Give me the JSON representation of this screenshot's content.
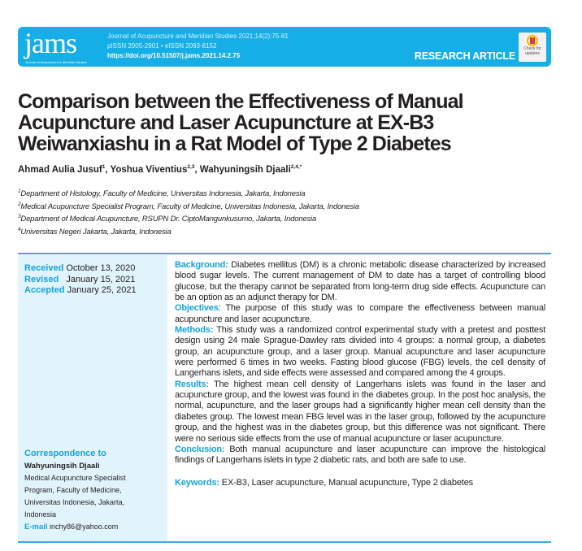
{
  "banner": {
    "logo": "jams",
    "logo_subtitle": "Journal of Acupuncture & Meridian Studies",
    "journal_line": "Journal of Acupuncture and Meridian Studies 2021;14(2):75-81",
    "issn_line": "pISSN 2005-2901 • eISSN 2093-8152",
    "doi": "https://doi.org/10.51507/j.jams.2021.14.2.75",
    "article_type": "RESEARCH ARTICLE",
    "check_updates": [
      "Check for",
      "updates"
    ],
    "color": "#16aee6"
  },
  "title_lines": [
    "Comparison between the Effectiveness of Manual",
    "Acupuncture and Laser Acupuncture at EX-B3",
    "Weiwanxiashu in a Rat Model of Type 2 Diabetes"
  ],
  "authors": [
    {
      "name": "Ahmad Aulia Jusuf",
      "sup": "1",
      "sep": ", "
    },
    {
      "name": "Yoshua Viventius",
      "sup": "2,3",
      "sep": ", "
    },
    {
      "name": "Wahyuningsih Djaali",
      "sup": "2,4,*",
      "sep": ""
    }
  ],
  "affiliations": [
    {
      "sup": "1",
      "text": "Department of Histology, Faculty of Medicine, Universitas Indonesia, Jakarta, Indonesia"
    },
    {
      "sup": "2",
      "text": "Medical Acupuncture Specialist Program, Faculty of Medicine, Universitas Indonesia, Jakarta, Indonesia"
    },
    {
      "sup": "3",
      "text": "Department of Medical Acupuncture, RSUPN Dr. CiptoMangunkusumo, Jakarta, Indonesia"
    },
    {
      "sup": "4",
      "text": "Universitas Negeri Jakarta, Jakarta, Indonesia"
    }
  ],
  "dates": [
    {
      "label": "Received",
      "value": "October 13, 2020"
    },
    {
      "label": "Revised",
      "value": "January 15, 2021"
    },
    {
      "label": "Accepted",
      "value": "January 25, 2021"
    }
  ],
  "correspondence": {
    "label": "Correspondence to",
    "name": "Wahyuningsih Djaali",
    "address_lines": [
      "Medical Acupuncture Specialist",
      "Program, Faculty of Medicine,",
      "Universitas Indonesia, Jakarta,",
      "Indonesia"
    ],
    "email_label": "E-mail",
    "email": "inchy86@yahoo.com"
  },
  "abstract": [
    {
      "label": "Background:",
      "text": "Diabetes mellitus (DM) is a chronic metabolic disease characterized by increased blood sugar levels. The current management of DM to date has a target of controlling blood glucose, but the therapy cannot be separated from long-term drug side effects. Acupuncture can be an option as an adjunct therapy for DM."
    },
    {
      "label": "Objectives",
      "text": ": The purpose of this study was to compare the effectiveness between manual acupuncture and laser acupuncture."
    },
    {
      "label": "Methods:",
      "text": "This study was a randomized control experimental study with a pretest and posttest design using 24 male Sprague-Dawley rats divided into 4 groups: a normal group, a diabetes group, an acupuncture group, and a laser group. Manual acupuncture and laser acupuncture were performed 6 times in two weeks. Fasting blood glucose (FBG) levels, the cell density of Langerhans islets, and side effects were assessed and compared among the 4 groups."
    },
    {
      "label": "Results:",
      "text": "The highest mean cell density of Langerhans islets was found in the laser and acupuncture group, and the lowest was found in the diabetes group. In the post hoc analysis, the normal, acupuncture, and the laser groups had a significantly higher mean cell density than the diabetes group. The lowest mean FBG level was in the laser group, followed by the acupuncture group, and the highest was in the diabetes group, but this difference was not significant. There were no serious side effects from the use of manual acupuncture or laser acupuncture."
    },
    {
      "label": "Conclusion:",
      "text": "Both manual acupuncture and laser acupuncture can improve the histological findings of Langerhans islets in type 2 diabetic rats, and both are safe to use."
    }
  ],
  "keywords": {
    "label": "Keywords:",
    "text": "EX-B3, Laser acupuncture, Manual acupuncture, Type 2 diabetes"
  },
  "accent_color": "#16a3dc"
}
